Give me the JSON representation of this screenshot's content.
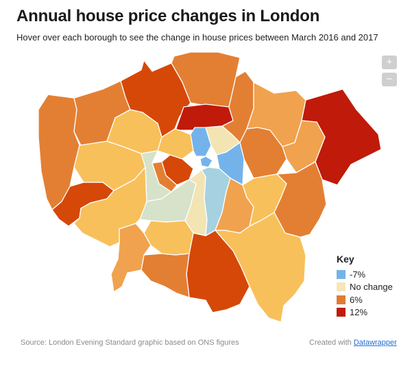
{
  "header": {
    "title": "Annual house price changes in London",
    "subtitle": "Hover over each borough to see the change in house prices between March 2016 and 2017"
  },
  "zoom": {
    "in_label": "+",
    "out_label": "−"
  },
  "key": {
    "title": "Key",
    "items": [
      {
        "label": "-7%",
        "color": "#74b3ea"
      },
      {
        "label": "No change",
        "color": "#f6e6b8"
      },
      {
        "label": "6%",
        "color": "#e07b33"
      },
      {
        "label": "12%",
        "color": "#c01a0a"
      }
    ]
  },
  "palette": {
    "red": "#c01a0a",
    "dark_orange": "#d64808",
    "orange": "#e37f33",
    "light_orange": "#f0a24e",
    "pale_orange": "#f8c05a",
    "cream": "#f3e4b4",
    "sage": "#d6e2c9",
    "light_blue": "#a6d1e0",
    "blue": "#74b3ea"
  },
  "footer": {
    "source": "Source: London Evening Standard graphic based on ONS figures",
    "credit_prefix": "Created with",
    "credit_link": "Datawrapper"
  }
}
